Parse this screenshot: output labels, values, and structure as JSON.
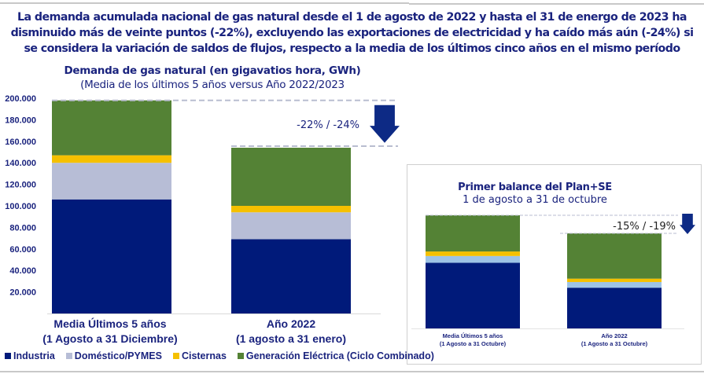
{
  "headline": "La demanda acumulada nacional de gas natural desde el 1 de agosto de 2022 y hasta el 31 de energo de 2023 ha disminuido más de veinte puntos (-22%), excluyendo las exportaciones de electricidad y ha caído más aún (-24%) si se considera la variación de saldos de flujos, respecto a la media de los últimos cinco años en el mismo período",
  "colors": {
    "industria": "#001a7a",
    "domestico": "#b7bdd6",
    "domestico_small": "#9dc3e6",
    "cisternas": "#f5c000",
    "generacion": "#548235",
    "text": "#1a237e",
    "arrow": "#0d2a85",
    "dash": "#b9bdd0"
  },
  "legend": [
    {
      "label": "Industria",
      "key": "industria"
    },
    {
      "label": "Doméstico/PYMES",
      "key": "domestico"
    },
    {
      "label": "Cisternas",
      "key": "cisternas"
    },
    {
      "label": "Generación Eléctrica (Ciclo Combinado)",
      "key": "generacion"
    }
  ],
  "chart_data": [
    {
      "type": "bar",
      "stacked": true,
      "title": "Demanda de gas natural (en gigavatios hora, GWh)",
      "subtitle": "(Media de los últimos 5 años versus Año 2022/2023",
      "categories": [
        {
          "line1": "Media Últimos 5 años",
          "line2": "(1 Agosto a 31 Diciembre)"
        },
        {
          "line1": "Año 2022",
          "line2": "(1 agosto a 31 enero)"
        }
      ],
      "series": [
        {
          "name": "Industria",
          "key": "industria",
          "values": [
            106000,
            69000
          ]
        },
        {
          "name": "Doméstico/PYMES",
          "key": "domestico",
          "values": [
            34000,
            25000
          ]
        },
        {
          "name": "Cisternas",
          "key": "cisternas",
          "values": [
            7000,
            6000
          ]
        },
        {
          "name": "Generación Eléctrica (Ciclo Combinado)",
          "key": "generacion",
          "values": [
            51000,
            54000
          ]
        }
      ],
      "yticks": [
        "200.000",
        "180.000",
        "160.000",
        "140.000",
        "120.000",
        "100.000",
        "80.000",
        "60.000",
        "40.000",
        "20.000"
      ],
      "ytick_values": [
        200000,
        180000,
        160000,
        140000,
        120000,
        100000,
        80000,
        60000,
        40000,
        20000
      ],
      "ylim": [
        0,
        200000
      ],
      "annotation": "-22% / -24%",
      "xlabel": "",
      "ylabel": "",
      "legend_position": "bottom"
    },
    {
      "type": "bar",
      "stacked": true,
      "title": "Primer balance del Plan+SE",
      "subtitle": "1 de agosto a 31 de octubre",
      "categories": [
        {
          "line1": "Media Últimos 5 años",
          "line2": "(1 Agosto a 31 Octubre)"
        },
        {
          "line1": "Año 2022",
          "line2": "(1 Agosto a 31 Octubre)"
        }
      ],
      "series": [
        {
          "name": "Industria",
          "key": "industria",
          "values": [
            58,
            36
          ]
        },
        {
          "name": "Doméstico/PYMES",
          "key": "domestico_small",
          "values": [
            6,
            5
          ]
        },
        {
          "name": "Cisternas",
          "key": "cisternas",
          "values": [
            4,
            3
          ]
        },
        {
          "name": "Generación Eléctrica (Ciclo Combinado)",
          "key": "generacion",
          "values": [
            32,
            40
          ]
        }
      ],
      "ylim": [
        0,
        100
      ],
      "annotation": "-15% / -19%",
      "xlabel": "",
      "ylabel": ""
    }
  ]
}
